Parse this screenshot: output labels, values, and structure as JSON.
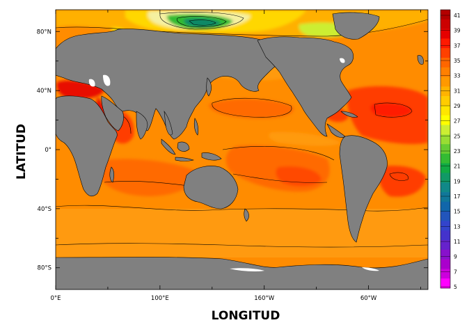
{
  "map": {
    "xlabel": "LONGITUD",
    "ylabel": "LATITUD",
    "land_color": "#808080",
    "x_ticks": [
      {
        "lon": 0,
        "label": "0°E"
      },
      {
        "lon": 100,
        "label": "100°E"
      },
      {
        "lon": 200,
        "label": "160°W"
      },
      {
        "lon": 300,
        "label": "60°W"
      }
    ],
    "x_minor_ticks": [
      50,
      150,
      250,
      350
    ],
    "y_ticks": [
      {
        "lat": 80,
        "label": "80°N"
      },
      {
        "lat": 40,
        "label": "40°N"
      },
      {
        "lat": 0,
        "label": "0°"
      },
      {
        "lat": -40,
        "label": "40°S"
      },
      {
        "lat": -80,
        "label": "80°S"
      }
    ],
    "y_minor_ticks": [
      60,
      20,
      -20,
      -60
    ]
  },
  "colorbar": {
    "labels": [
      "41",
      "39",
      "37",
      "35",
      "33",
      "31",
      "29",
      "27",
      "25",
      "23",
      "21",
      "19",
      "17",
      "15",
      "13",
      "11",
      "9",
      "7",
      "5"
    ],
    "colors": [
      "#b30000",
      "#cc0000",
      "#e60000",
      "#ff1a00",
      "#ff4000",
      "#ff6600",
      "#ff8000",
      "#ff9900",
      "#ffb300",
      "#ffcc00",
      "#ffe600",
      "#ffff00",
      "#ccee33",
      "#99dd33",
      "#66cc33",
      "#33bb33",
      "#11aa44",
      "#119966",
      "#118888",
      "#117799",
      "#1166aa",
      "#2255bb",
      "#3344cc",
      "#4433cc",
      "#6622cc",
      "#8811cc",
      "#aa00cc",
      "#cc00dd",
      "#ff00ff"
    ]
  }
}
